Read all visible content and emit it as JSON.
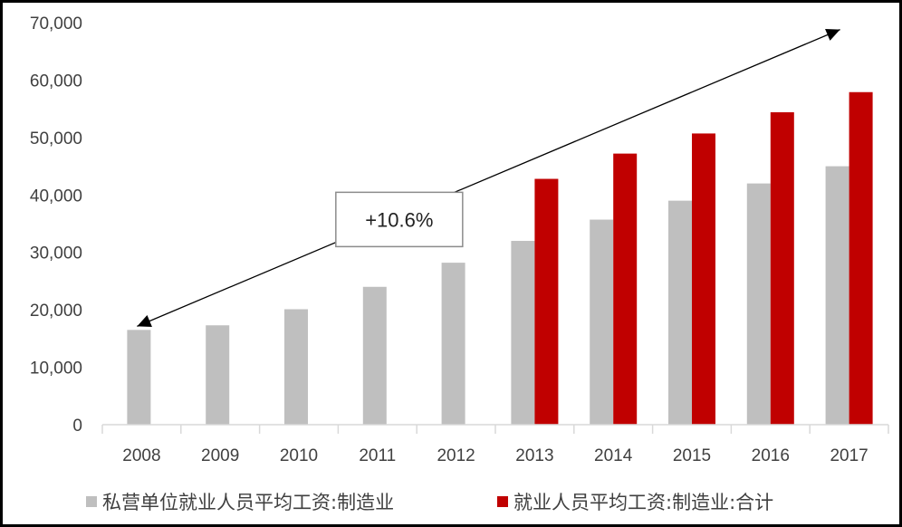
{
  "chart_data": {
    "type": "bar",
    "categories": [
      "2008",
      "2009",
      "2010",
      "2011",
      "2012",
      "2013",
      "2014",
      "2015",
      "2016",
      "2017"
    ],
    "series": [
      {
        "name": "私营单位就业人员平均工资:制造业",
        "color": "#bfbfbf",
        "values": [
          16500,
          17300,
          20100,
          24000,
          28200,
          32000,
          35700,
          39000,
          42000,
          45000
        ]
      },
      {
        "name": "就业人员平均工资:制造业:合计",
        "color": "#c00000",
        "values": [
          null,
          null,
          null,
          null,
          null,
          42800,
          47200,
          50700,
          54400,
          57900
        ]
      }
    ],
    "ylim": [
      0,
      70000
    ],
    "yticks": [
      0,
      10000,
      20000,
      30000,
      40000,
      50000,
      60000,
      70000
    ],
    "ytick_labels": [
      "0",
      "10,000",
      "20,000",
      "30,000",
      "40,000",
      "50,000",
      "60,000",
      "70,000"
    ],
    "grid": false,
    "legend_position": "bottom",
    "annotation": {
      "text": "+10.6%",
      "arrow_from": {
        "x": "2008",
        "y": 16500
      },
      "arrow_to": {
        "x": "2017",
        "y": 68800
      }
    }
  }
}
